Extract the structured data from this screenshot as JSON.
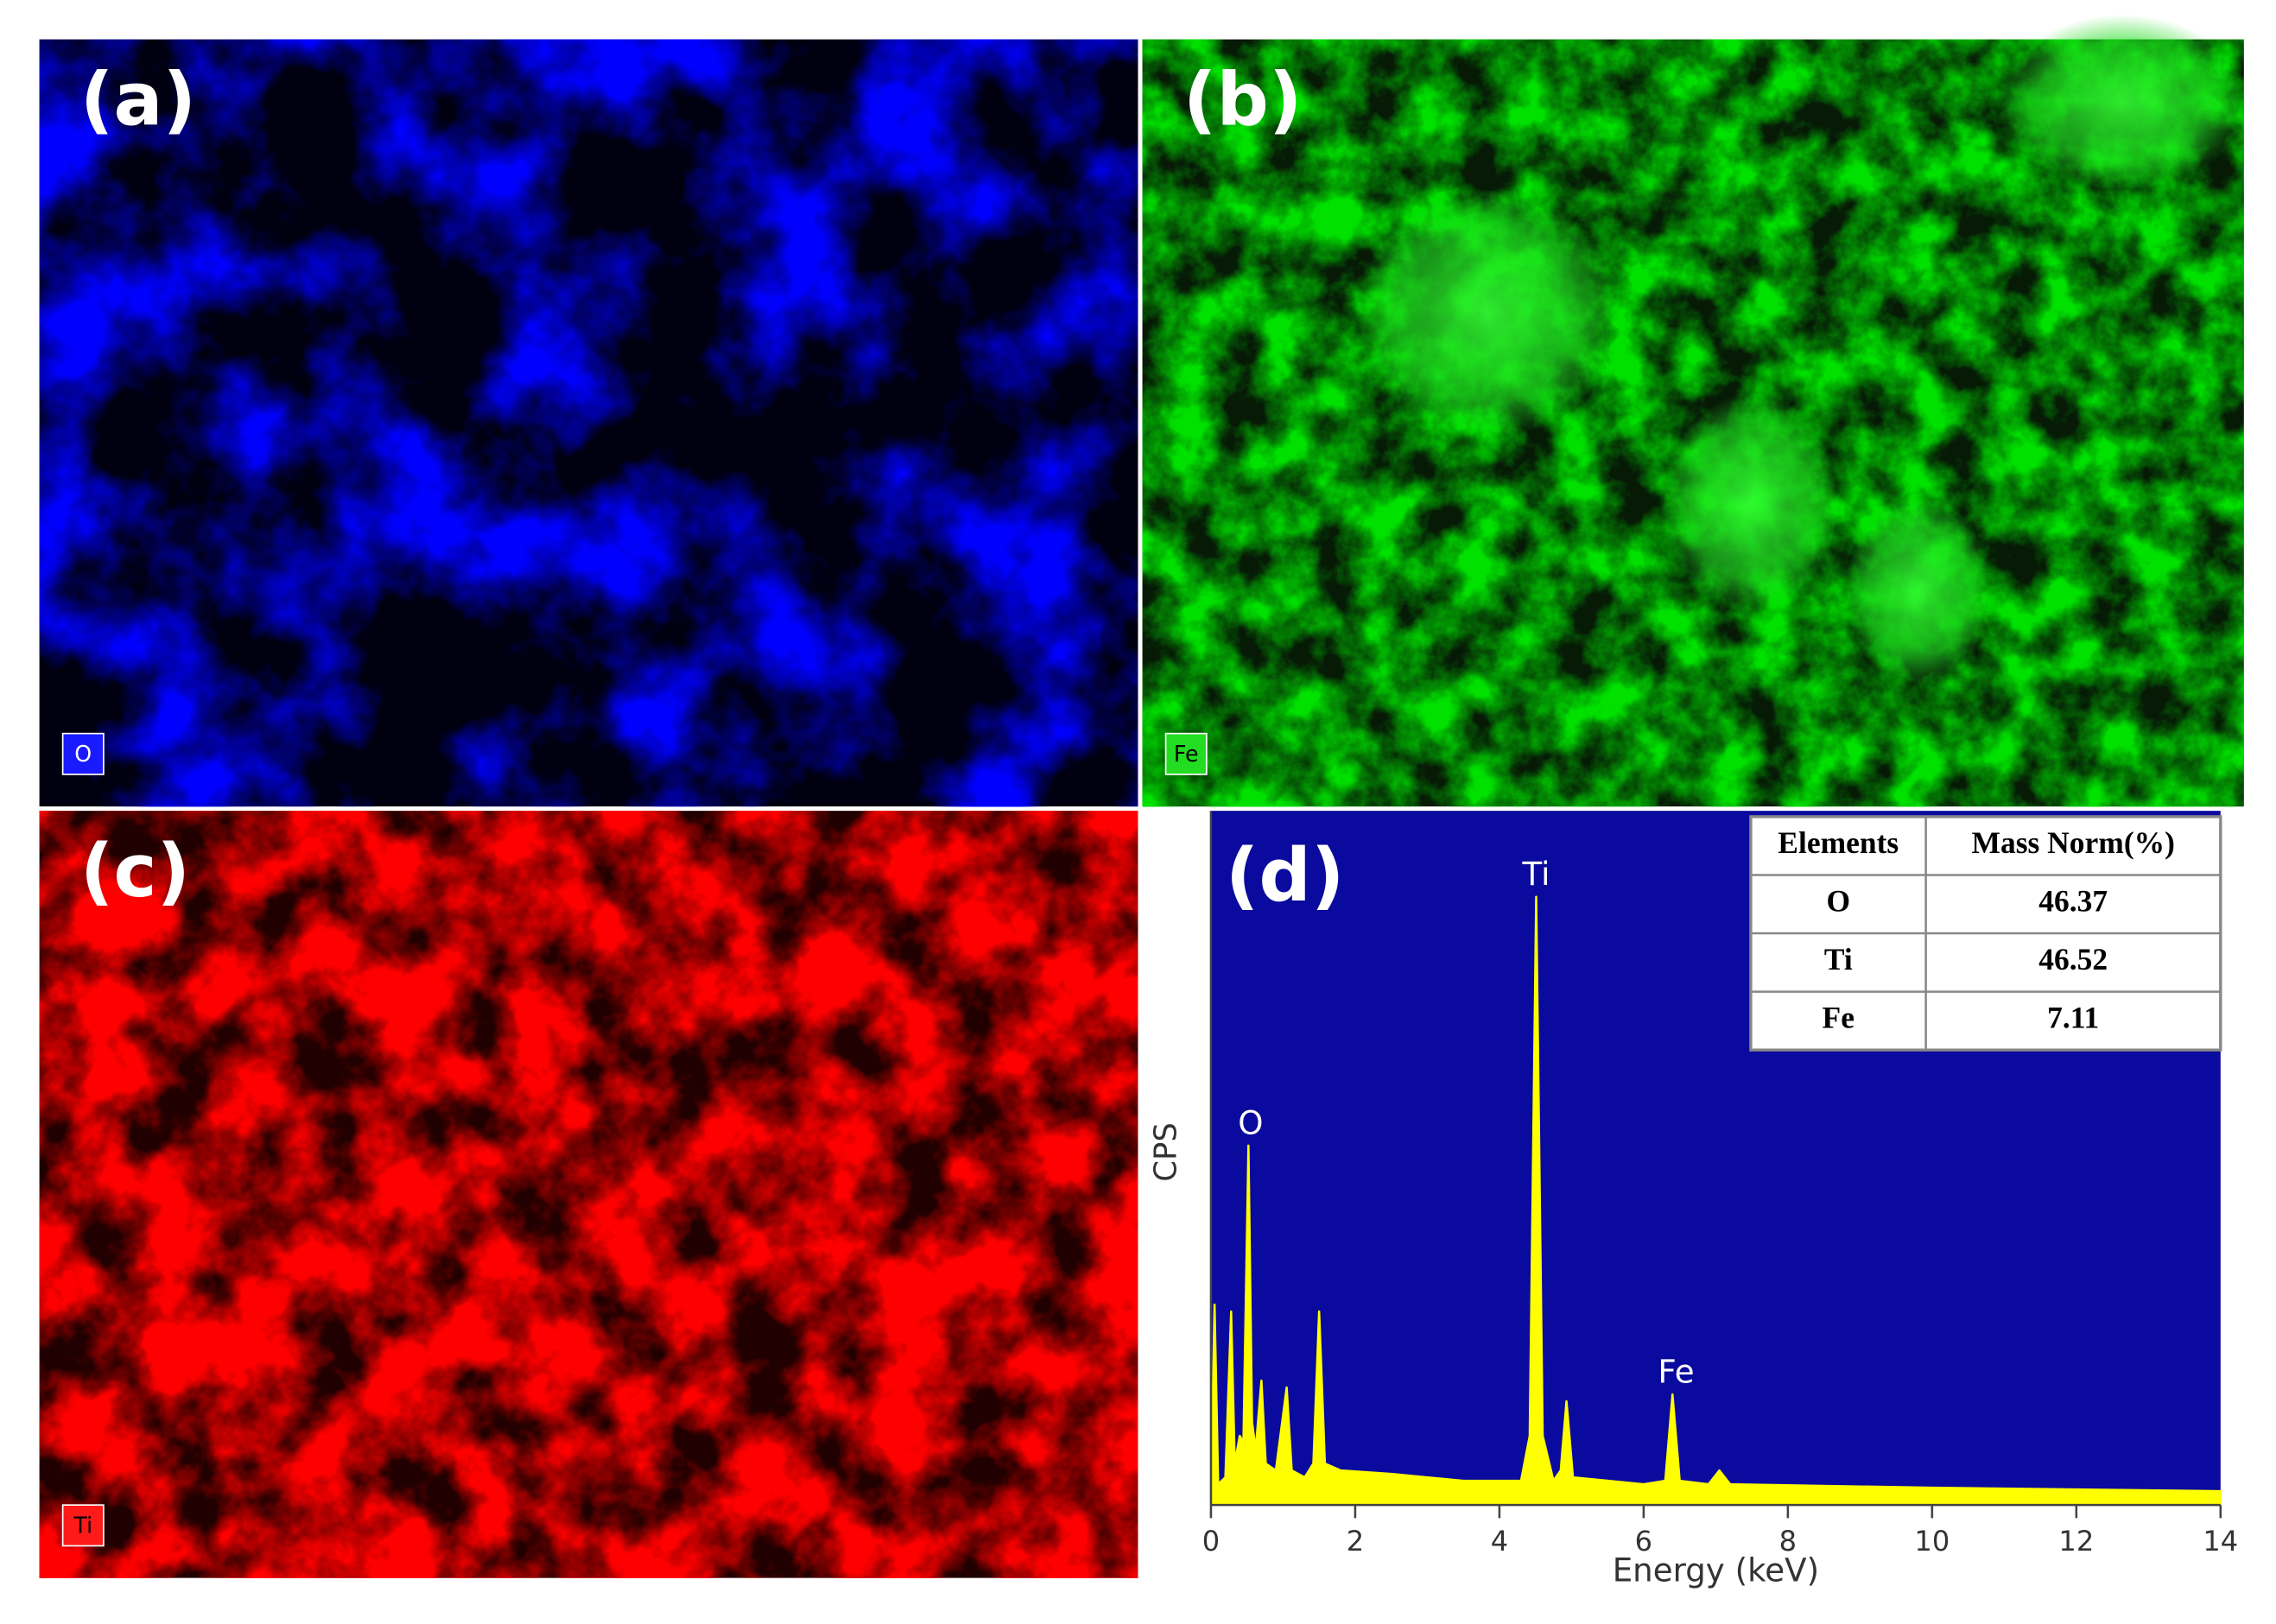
{
  "panels": [
    {
      "label": "(a)",
      "element": "O"
    },
    {
      "label": "(b)",
      "element": "Fe"
    },
    {
      "label": "(c)",
      "element": "Ti"
    }
  ],
  "chart_data": {
    "type": "area",
    "label": "(d)",
    "xlabel": "Energy (keV)",
    "ylabel": "CPS",
    "color": "#ffff00",
    "background": "#0a0a9e",
    "xlim": [
      0,
      14
    ],
    "xticks": [
      0,
      2,
      4,
      6,
      8,
      10,
      12,
      14
    ],
    "ylim": [
      0,
      100
    ],
    "x": [
      0,
      0.05,
      0.1,
      0.2,
      0.28,
      0.33,
      0.4,
      0.45,
      0.52,
      0.57,
      0.62,
      0.7,
      0.76,
      0.9,
      1.05,
      1.12,
      1.3,
      1.42,
      1.5,
      1.58,
      1.8,
      2.5,
      3.5,
      4.3,
      4.42,
      4.51,
      4.6,
      4.75,
      4.85,
      4.93,
      5.02,
      6.0,
      6.3,
      6.4,
      6.5,
      6.9,
      7.05,
      7.2,
      10,
      14
    ],
    "values": [
      2,
      29,
      3,
      4,
      28,
      6,
      10,
      9,
      52,
      12,
      8,
      18,
      6,
      5,
      17,
      5,
      4,
      6,
      28,
      6,
      5,
      4.5,
      3.5,
      3.5,
      10,
      88,
      10,
      3.5,
      5,
      15,
      4,
      3,
      3.5,
      16,
      3.5,
      3,
      5,
      3,
      2.5,
      2
    ],
    "annotations": [
      {
        "text": "O",
        "x": 0.55,
        "y": 55
      },
      {
        "text": "Ti",
        "x": 4.51,
        "y": 91
      },
      {
        "text": "Fe",
        "x": 6.45,
        "y": 19
      }
    ],
    "table": {
      "header": [
        "Elements",
        "Mass Norm(%)"
      ],
      "rows": [
        [
          "O",
          46.37
        ],
        [
          "Ti",
          46.52
        ],
        [
          "Fe",
          7.11
        ]
      ]
    }
  }
}
